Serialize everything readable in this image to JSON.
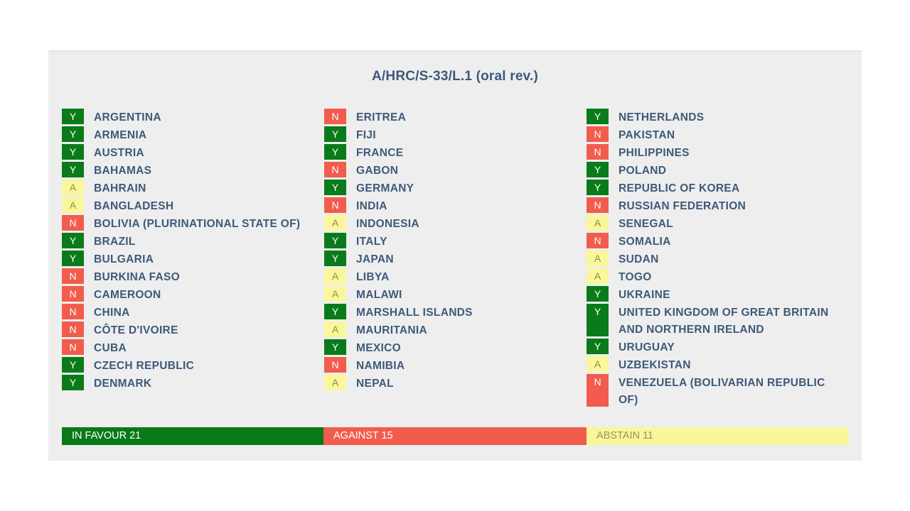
{
  "title": "A/HRC/S-33/L.1 (oral rev.)",
  "columns": [
    [
      {
        "vote": "Y",
        "country": "ARGENTINA"
      },
      {
        "vote": "Y",
        "country": "ARMENIA"
      },
      {
        "vote": "Y",
        "country": "AUSTRIA"
      },
      {
        "vote": "Y",
        "country": "BAHAMAS"
      },
      {
        "vote": "A",
        "country": "BAHRAIN"
      },
      {
        "vote": "A",
        "country": "BANGLADESH"
      },
      {
        "vote": "N",
        "country": "BOLIVIA (PLURINATIONAL STATE OF)"
      },
      {
        "vote": "Y",
        "country": "BRAZIL"
      },
      {
        "vote": "Y",
        "country": "BULGARIA"
      },
      {
        "vote": "N",
        "country": "BURKINA FASO"
      },
      {
        "vote": "N",
        "country": "CAMEROON"
      },
      {
        "vote": "N",
        "country": "CHINA"
      },
      {
        "vote": "N",
        "country": "CÔTE D'IVOIRE"
      },
      {
        "vote": "N",
        "country": "CUBA"
      },
      {
        "vote": "Y",
        "country": "CZECH REPUBLIC"
      },
      {
        "vote": "Y",
        "country": "DENMARK"
      }
    ],
    [
      {
        "vote": "N",
        "country": "ERITREA"
      },
      {
        "vote": "Y",
        "country": "FIJI"
      },
      {
        "vote": "Y",
        "country": "FRANCE"
      },
      {
        "vote": "N",
        "country": "GABON"
      },
      {
        "vote": "Y",
        "country": "GERMANY"
      },
      {
        "vote": "N",
        "country": "INDIA"
      },
      {
        "vote": "A",
        "country": "INDONESIA"
      },
      {
        "vote": "Y",
        "country": "ITALY"
      },
      {
        "vote": "Y",
        "country": "JAPAN"
      },
      {
        "vote": "A",
        "country": "LIBYA"
      },
      {
        "vote": "A",
        "country": "MALAWI"
      },
      {
        "vote": "Y",
        "country": "MARSHALL ISLANDS"
      },
      {
        "vote": "A",
        "country": "MAURITANIA"
      },
      {
        "vote": "Y",
        "country": "MEXICO"
      },
      {
        "vote": "N",
        "country": "NAMIBIA"
      },
      {
        "vote": "A",
        "country": "NEPAL"
      }
    ],
    [
      {
        "vote": "Y",
        "country": "NETHERLANDS"
      },
      {
        "vote": "N",
        "country": "PAKISTAN"
      },
      {
        "vote": "N",
        "country": "PHILIPPINES"
      },
      {
        "vote": "Y",
        "country": "POLAND"
      },
      {
        "vote": "Y",
        "country": "REPUBLIC OF KOREA"
      },
      {
        "vote": "N",
        "country": "RUSSIAN FEDERATION"
      },
      {
        "vote": "A",
        "country": "SENEGAL"
      },
      {
        "vote": "N",
        "country": "SOMALIA"
      },
      {
        "vote": "A",
        "country": "SUDAN"
      },
      {
        "vote": "A",
        "country": "TOGO"
      },
      {
        "vote": "Y",
        "country": "UKRAINE"
      },
      {
        "vote": "Y",
        "country": "UNITED KINGDOM OF GREAT BRITAIN AND NORTHERN IRELAND",
        "wrap": true
      },
      {
        "vote": "Y",
        "country": "URUGUAY"
      },
      {
        "vote": "A",
        "country": "UZBEKISTAN"
      },
      {
        "vote": "N",
        "country": "VENEZUELA (BOLIVARIAN REPUBLIC OF)",
        "wrap": true
      }
    ]
  ],
  "totals": {
    "in_favour": "IN FAVOUR 21",
    "against": "AGAINST 15",
    "abstain": "ABSTAIN 11"
  },
  "colors": {
    "yes": "#0a7b1a",
    "no": "#f25c4d",
    "abstain": "#faf79a",
    "text": "#3d5a78"
  }
}
